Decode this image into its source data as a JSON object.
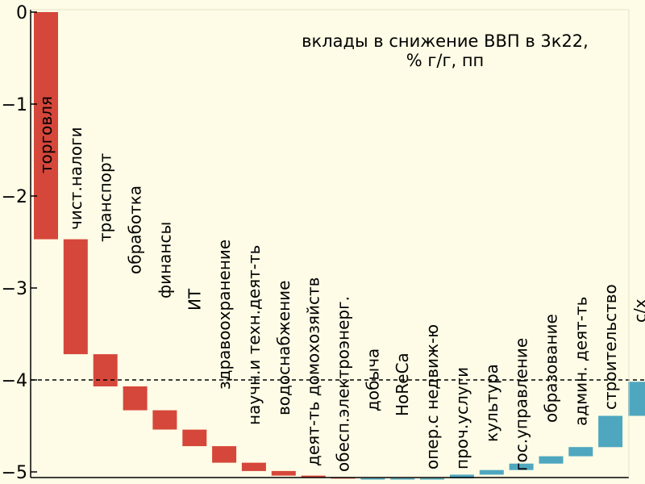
{
  "chart_data": {
    "type": "bar",
    "subtype": "waterfall",
    "title_lines": [
      "вклады в снижение ВВП в 3к22,",
      "% г/г, пп"
    ],
    "xlabel": "",
    "ylabel": "",
    "ylim": [
      -5.05,
      0
    ],
    "yticks": [
      0,
      -1,
      -2,
      -3,
      -4,
      -5
    ],
    "ytick_labels": [
      "0",
      "−1",
      "−2",
      "−3",
      "−4",
      "−5"
    ],
    "reference_line": -4.0,
    "grid": false,
    "legend": "none",
    "colors": {
      "negative": "#D5473A",
      "positive": "#4FA7BF",
      "background": "#FEFCE6",
      "reference": "#000000"
    },
    "categories": [
      "торговля",
      "чист.налоги",
      "транспорт",
      "обработка",
      "финансы",
      "ИТ",
      "здравоохранение",
      "научн.и техн.деят-ть",
      "водоснабжение",
      "деят-ть домохозяйств",
      "обесп.электроэнерг.",
      "добыча",
      "HoReCa",
      "опер.с недвиж-ю",
      "проч.услуги",
      "культура",
      "гос.управление",
      "образование",
      "админ. деят-ть",
      "строительство",
      "с/х"
    ],
    "values": [
      -2.47,
      -1.25,
      -0.35,
      -0.26,
      -0.21,
      -0.18,
      -0.18,
      -0.09,
      -0.05,
      -0.02,
      -0.01,
      0.0,
      0.0,
      0.0,
      0.04,
      0.05,
      0.07,
      0.08,
      0.1,
      0.34,
      0.37
    ],
    "cumulative_end": [
      -2.47,
      -3.72,
      -4.07,
      -4.33,
      -4.54,
      -4.72,
      -4.9,
      -4.99,
      -5.04,
      -5.06,
      -5.07,
      -5.07,
      -5.07,
      -5.07,
      -5.03,
      -4.98,
      -4.91,
      -4.83,
      -4.73,
      -4.39,
      -4.02
    ]
  }
}
